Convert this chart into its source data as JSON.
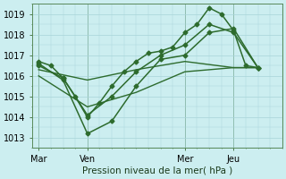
{
  "xlabel": "Pression niveau de la mer( hPa )",
  "background_color": "#cceef0",
  "grid_color": "#a8d4d8",
  "line_color": "#2d6b2d",
  "ylim": [
    1012.5,
    1019.5
  ],
  "yticks": [
    1013,
    1014,
    1015,
    1016,
    1017,
    1018,
    1019
  ],
  "day_labels": [
    "Mar",
    "Ven",
    "Mer",
    "Jeu"
  ],
  "day_positions": [
    0,
    24,
    72,
    96
  ],
  "xlim": [
    -3,
    120
  ],
  "series": [
    {
      "x": [
        0,
        6,
        12,
        18,
        24,
        30,
        36,
        42,
        48,
        54,
        60,
        66,
        72,
        78,
        84,
        90,
        96,
        102,
        108
      ],
      "y": [
        1016.7,
        1016.5,
        1015.9,
        1015.0,
        1014.0,
        1014.7,
        1015.5,
        1016.2,
        1016.7,
        1017.1,
        1017.2,
        1017.4,
        1018.1,
        1018.5,
        1019.3,
        1019.0,
        1018.2,
        1016.5,
        1016.4
      ],
      "marker": "D",
      "markersize": 2.5,
      "linewidth": 1.1,
      "linestyle": "-"
    },
    {
      "x": [
        0,
        12,
        24,
        36,
        48,
        60,
        72,
        84,
        96,
        108
      ],
      "y": [
        1016.6,
        1015.8,
        1013.2,
        1013.8,
        1015.5,
        1016.8,
        1017.0,
        1018.1,
        1018.3,
        1016.4
      ],
      "marker": "D",
      "markersize": 2.5,
      "linewidth": 1.1,
      "linestyle": "-"
    },
    {
      "x": [
        0,
        12,
        24,
        36,
        48,
        60,
        72,
        84,
        96,
        108
      ],
      "y": [
        1016.5,
        1015.9,
        1014.1,
        1015.0,
        1016.2,
        1017.0,
        1017.5,
        1018.5,
        1018.1,
        1016.4
      ],
      "marker": "D",
      "markersize": 2.5,
      "linewidth": 1.1,
      "linestyle": "-"
    },
    {
      "x": [
        0,
        24,
        48,
        72,
        96,
        108
      ],
      "y": [
        1016.3,
        1015.8,
        1016.3,
        1016.7,
        1016.4,
        1016.4
      ],
      "marker": null,
      "markersize": 0,
      "linewidth": 1.0,
      "linestyle": "-"
    },
    {
      "x": [
        0,
        24,
        48,
        72,
        96,
        108
      ],
      "y": [
        1016.0,
        1014.5,
        1015.2,
        1016.2,
        1016.4,
        1016.4
      ],
      "marker": null,
      "markersize": 0,
      "linewidth": 1.0,
      "linestyle": "-"
    }
  ]
}
